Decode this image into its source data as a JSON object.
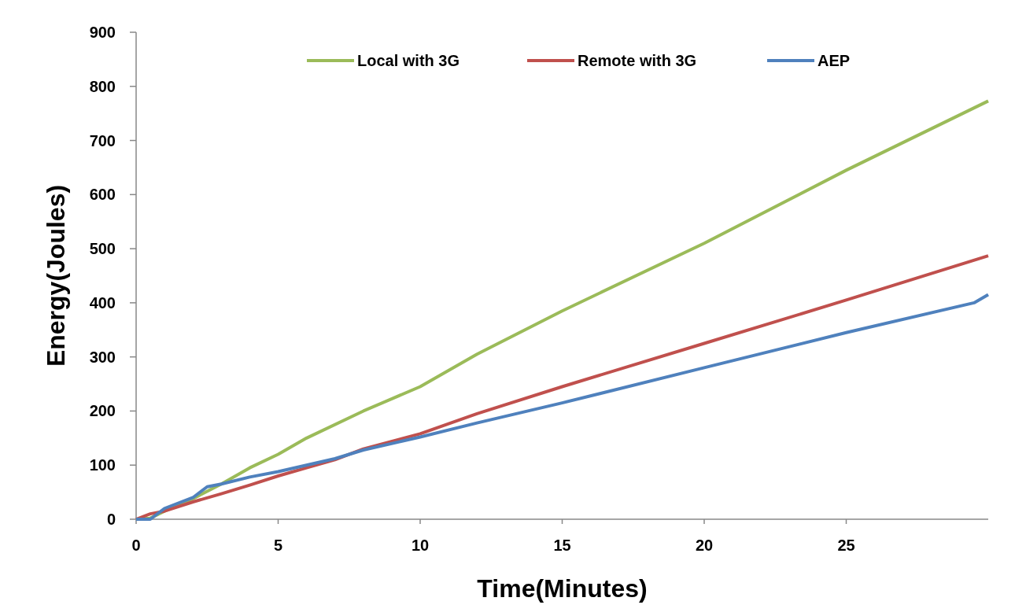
{
  "chart_data": {
    "type": "line",
    "xlabel": "Time(Minutes)",
    "ylabel": "Energy(Joules)",
    "xlim": [
      0,
      30
    ],
    "xticks": [
      0,
      5,
      10,
      15,
      20,
      25
    ],
    "ylim": [
      0,
      900
    ],
    "yticks": [
      0,
      100,
      200,
      300,
      400,
      500,
      600,
      700,
      800,
      900
    ],
    "grid": false,
    "legend": "top",
    "marker": "none",
    "line_style": "solid",
    "series": [
      {
        "name": "Local with 3G",
        "color": "#9bbb59",
        "x": [
          0,
          0.5,
          1,
          2,
          3,
          4,
          5,
          6,
          8,
          10,
          12,
          15,
          20,
          25,
          30
        ],
        "values": [
          0,
          2,
          15,
          38,
          65,
          95,
          120,
          150,
          200,
          245,
          305,
          385,
          510,
          645,
          773
        ]
      },
      {
        "name": "Remote with 3G",
        "color": "#c0504d",
        "x": [
          0,
          0.5,
          1,
          2,
          3,
          4,
          5,
          6,
          7,
          8,
          10,
          12,
          15,
          20,
          25,
          30
        ],
        "values": [
          0,
          10,
          15,
          32,
          47,
          63,
          80,
          95,
          110,
          130,
          158,
          195,
          245,
          325,
          405,
          487
        ]
      },
      {
        "name": "AEP",
        "color": "#4f81bd",
        "x": [
          0,
          0.5,
          1,
          2,
          2.5,
          3,
          4,
          5,
          6,
          7,
          8,
          10,
          12,
          15,
          20,
          25,
          29.5,
          30
        ],
        "values": [
          0,
          0,
          20,
          40,
          60,
          65,
          78,
          88,
          100,
          112,
          128,
          152,
          178,
          215,
          280,
          345,
          400,
          415
        ]
      }
    ]
  }
}
